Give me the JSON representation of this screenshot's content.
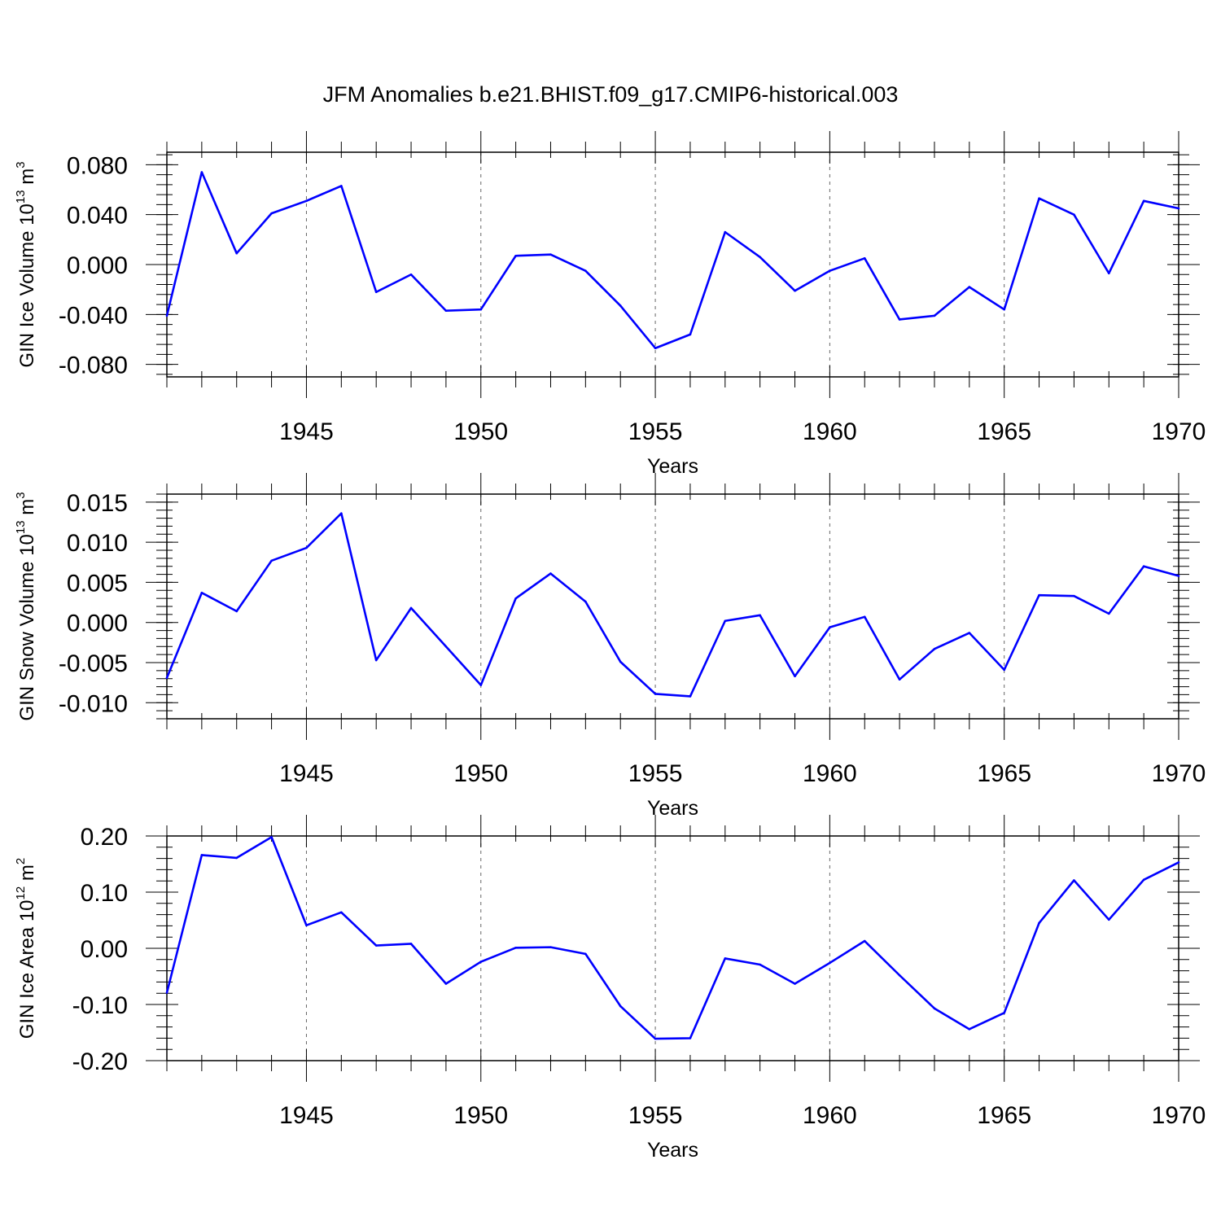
{
  "title": "JFM Anomalies b.e21.BHIST.f09_g17.CMIP6-historical.003",
  "line_color": "#0000ff",
  "chart_data": [
    {
      "type": "line",
      "ylabel": "GIN Ice Volume 10",
      "ylabel_exp": "13",
      "ylabel_unit": " m",
      "ylabel_unit_exp": "3",
      "xlabel": "Years",
      "xlim": [
        1941,
        1970
      ],
      "ylim": [
        -0.09,
        0.09
      ],
      "xticks": [
        "1945",
        "1950",
        "1955",
        "1960",
        "1965",
        "1970"
      ],
      "xtick_values": [
        1945,
        1950,
        1955,
        1960,
        1965,
        1970
      ],
      "yticks": [
        "0.080",
        "0.040",
        "0.000",
        "-0.040",
        "-0.080"
      ],
      "ytick_values": [
        0.08,
        0.04,
        0.0,
        -0.04,
        -0.08
      ],
      "y_minor_step": 0.008,
      "grid": "vertical dashed at major x ticks",
      "x": [
        1941,
        1942,
        1943,
        1944,
        1945,
        1946,
        1947,
        1948,
        1949,
        1950,
        1951,
        1952,
        1953,
        1954,
        1955,
        1956,
        1957,
        1958,
        1959,
        1960,
        1961,
        1962,
        1963,
        1964,
        1965,
        1966,
        1967,
        1968,
        1969,
        1970
      ],
      "values": [
        -0.041,
        0.074,
        0.009,
        0.041,
        0.051,
        0.063,
        -0.022,
        -0.008,
        -0.037,
        -0.036,
        0.007,
        0.008,
        -0.005,
        -0.033,
        -0.067,
        -0.056,
        0.026,
        0.006,
        -0.021,
        -0.005,
        0.005,
        -0.044,
        -0.041,
        -0.018,
        -0.036,
        0.053,
        0.04,
        -0.007,
        0.051,
        0.045
      ]
    },
    {
      "type": "line",
      "ylabel": "GIN Snow Volume 10",
      "ylabel_exp": "13",
      "ylabel_unit": " m",
      "ylabel_unit_exp": "3",
      "xlabel": "Years",
      "xlim": [
        1941,
        1970
      ],
      "ylim": [
        -0.012,
        0.016
      ],
      "xticks": [
        "1945",
        "1950",
        "1955",
        "1960",
        "1965",
        "1970"
      ],
      "xtick_values": [
        1945,
        1950,
        1955,
        1960,
        1965,
        1970
      ],
      "yticks": [
        "0.015",
        "0.010",
        "0.005",
        "0.000",
        "-0.005",
        "-0.010"
      ],
      "ytick_values": [
        0.015,
        0.01,
        0.005,
        0.0,
        -0.005,
        -0.01
      ],
      "y_minor_step": 0.001,
      "grid": "vertical dashed at major x ticks",
      "x": [
        1941,
        1942,
        1943,
        1944,
        1945,
        1946,
        1947,
        1948,
        1949,
        1950,
        1951,
        1952,
        1953,
        1954,
        1955,
        1956,
        1957,
        1958,
        1959,
        1960,
        1961,
        1962,
        1963,
        1964,
        1965,
        1966,
        1967,
        1968,
        1969,
        1970
      ],
      "values": [
        -0.0069,
        0.0037,
        0.0014,
        0.0077,
        0.0093,
        0.0136,
        -0.0047,
        0.0018,
        -0.003,
        -0.0078,
        0.003,
        0.0061,
        0.0026,
        -0.0049,
        -0.0089,
        -0.0092,
        0.0002,
        0.0009,
        -0.0067,
        -0.0006,
        0.0007,
        -0.0071,
        -0.0033,
        -0.0013,
        -0.0059,
        0.0034,
        0.0033,
        0.0011,
        0.007,
        0.0058
      ]
    },
    {
      "type": "line",
      "ylabel": "GIN Ice Area 10",
      "ylabel_exp": "12",
      "ylabel_unit": " m",
      "ylabel_unit_exp": "2",
      "xlabel": "Years",
      "xlim": [
        1941,
        1970
      ],
      "ylim": [
        -0.2,
        0.2
      ],
      "xticks": [
        "1945",
        "1950",
        "1955",
        "1960",
        "1965",
        "1970"
      ],
      "xtick_values": [
        1945,
        1950,
        1955,
        1960,
        1965,
        1970
      ],
      "yticks": [
        "0.20",
        "0.10",
        "0.00",
        "-0.10",
        "-0.20"
      ],
      "ytick_values": [
        0.2,
        0.1,
        0.0,
        -0.1,
        -0.2
      ],
      "y_minor_step": 0.02,
      "grid": "vertical dashed at major x ticks",
      "x": [
        1941,
        1942,
        1943,
        1944,
        1945,
        1946,
        1947,
        1948,
        1949,
        1950,
        1951,
        1952,
        1953,
        1954,
        1955,
        1956,
        1957,
        1958,
        1959,
        1960,
        1961,
        1962,
        1963,
        1964,
        1965,
        1966,
        1967,
        1968,
        1969,
        1970
      ],
      "values": [
        -0.079,
        0.166,
        0.161,
        0.198,
        0.041,
        0.064,
        0.005,
        0.008,
        -0.063,
        -0.024,
        0.001,
        0.002,
        -0.01,
        -0.103,
        -0.161,
        -0.16,
        -0.018,
        -0.029,
        -0.063,
        -0.026,
        0.013,
        -0.048,
        -0.107,
        -0.144,
        -0.115,
        0.045,
        0.121,
        0.051,
        0.122,
        0.153
      ]
    }
  ]
}
